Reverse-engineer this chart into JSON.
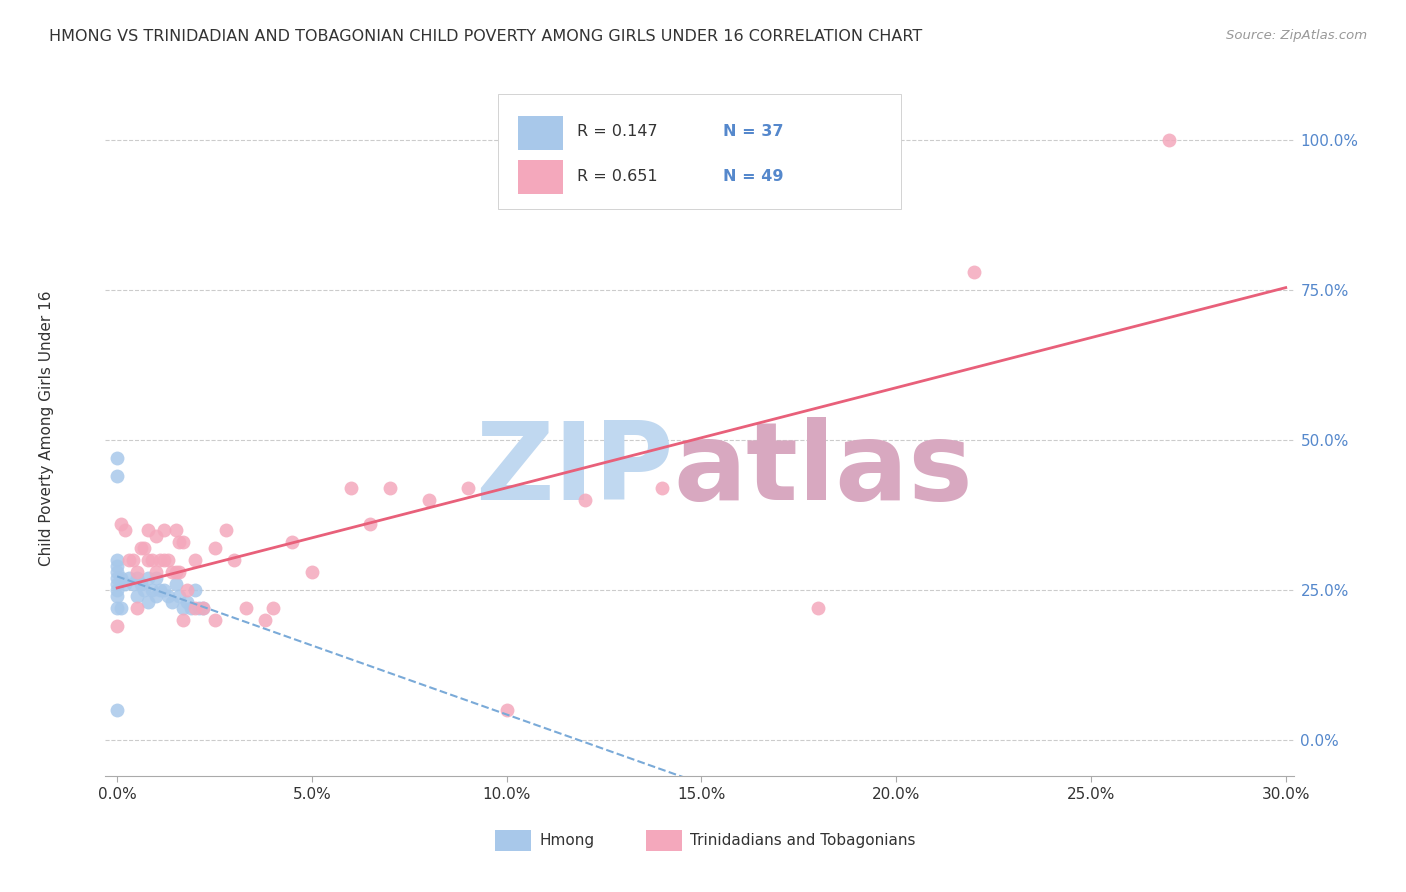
{
  "title": "HMONG VS TRINIDADIAN AND TOBAGONIAN CHILD POVERTY AMONG GIRLS UNDER 16 CORRELATION CHART",
  "source": "Source: ZipAtlas.com",
  "ylabel": "Child Poverty Among Girls Under 16",
  "R1": 0.147,
  "N1": 37,
  "R2": 0.651,
  "N2": 49,
  "color1": "#a8c8ea",
  "color2": "#f4a8bc",
  "line_color1": "#7aaad8",
  "line_color2": "#e8607a",
  "watermark_zip_color": "#c0d8f0",
  "watermark_atlas_color": "#d8a8c0",
  "tick_label_color": "#5588cc",
  "text_color": "#333333",
  "source_color": "#999999",
  "grid_color": "#cccccc",
  "hmong_x": [
    0.0,
    0.0,
    0.0,
    0.0,
    0.0,
    0.0,
    0.0,
    0.0,
    0.0,
    0.0,
    0.0,
    0.001,
    0.001,
    0.002,
    0.003,
    0.004,
    0.005,
    0.005,
    0.006,
    0.007,
    0.008,
    0.008,
    0.009,
    0.01,
    0.01,
    0.011,
    0.012,
    0.013,
    0.014,
    0.015,
    0.016,
    0.017,
    0.018,
    0.019,
    0.02,
    0.021,
    0.022
  ],
  "hmong_y": [
    0.47,
    0.44,
    0.3,
    0.29,
    0.28,
    0.27,
    0.26,
    0.25,
    0.24,
    0.22,
    0.05,
    0.22,
    0.27,
    0.26,
    0.27,
    0.26,
    0.27,
    0.24,
    0.26,
    0.25,
    0.27,
    0.23,
    0.25,
    0.27,
    0.24,
    0.25,
    0.25,
    0.24,
    0.23,
    0.26,
    0.24,
    0.22,
    0.23,
    0.22,
    0.25,
    0.22,
    0.22
  ],
  "trin_x": [
    0.27,
    0.0,
    0.001,
    0.002,
    0.003,
    0.004,
    0.005,
    0.005,
    0.006,
    0.007,
    0.008,
    0.008,
    0.009,
    0.01,
    0.01,
    0.011,
    0.012,
    0.012,
    0.013,
    0.014,
    0.015,
    0.015,
    0.016,
    0.016,
    0.017,
    0.017,
    0.018,
    0.02,
    0.02,
    0.022,
    0.025,
    0.025,
    0.028,
    0.03,
    0.033,
    0.038,
    0.04,
    0.045,
    0.05,
    0.06,
    0.065,
    0.07,
    0.08,
    0.09,
    0.1,
    0.12,
    0.14,
    0.18,
    0.22
  ],
  "trin_y": [
    1.0,
    0.19,
    0.36,
    0.35,
    0.3,
    0.3,
    0.28,
    0.22,
    0.32,
    0.32,
    0.35,
    0.3,
    0.3,
    0.34,
    0.28,
    0.3,
    0.35,
    0.3,
    0.3,
    0.28,
    0.35,
    0.28,
    0.33,
    0.28,
    0.33,
    0.2,
    0.25,
    0.3,
    0.22,
    0.22,
    0.32,
    0.2,
    0.35,
    0.3,
    0.22,
    0.2,
    0.22,
    0.33,
    0.28,
    0.42,
    0.36,
    0.42,
    0.4,
    0.42,
    0.05,
    0.4,
    0.42,
    0.22,
    0.78
  ],
  "xlim": [
    -0.003,
    0.302
  ],
  "ylim": [
    -0.06,
    1.1
  ],
  "xticks": [
    0.0,
    0.05,
    0.1,
    0.15,
    0.2,
    0.25,
    0.3
  ],
  "yticks": [
    0.0,
    0.25,
    0.5,
    0.75,
    1.0
  ],
  "scatter_size": 100,
  "scatter_alpha": 0.85
}
